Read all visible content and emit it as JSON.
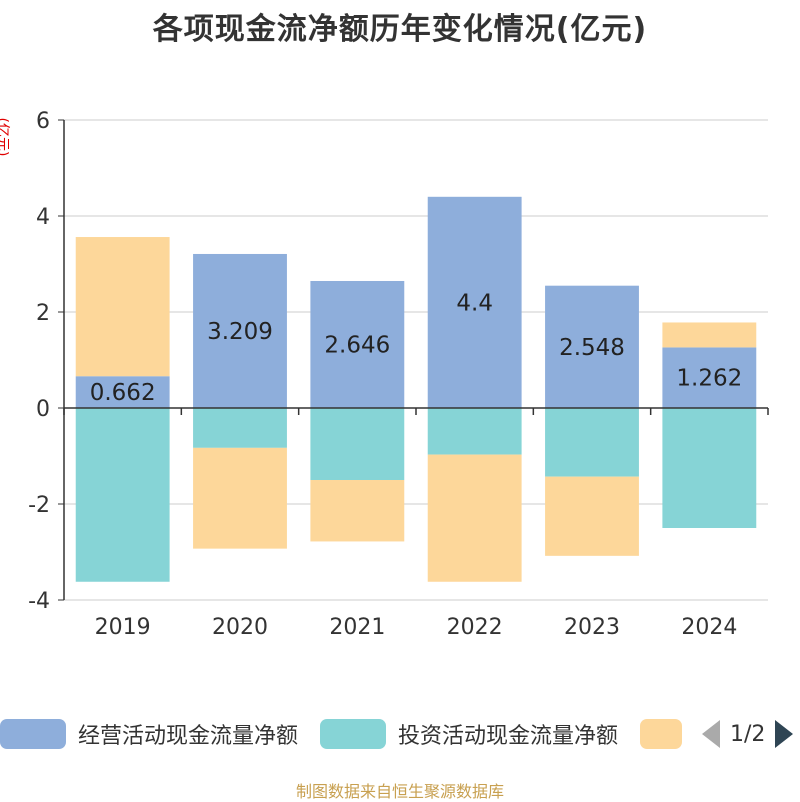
{
  "title": "各项现金流净额历年变化情况(亿元)",
  "y_unit": "(亿元)",
  "source": "制图数据来自恒生聚源数据库",
  "legend": {
    "items": [
      {
        "label": "经营活动现金流量净额",
        "color": "#8eaedb"
      },
      {
        "label": "投资活动现金流量净额",
        "color": "#86d4d6"
      },
      {
        "label": "",
        "color": "#fdd79a"
      }
    ],
    "page": "1/2"
  },
  "chart_data": {
    "type": "bar",
    "stacked": true,
    "categories": [
      "2019",
      "2020",
      "2021",
      "2022",
      "2023",
      "2024"
    ],
    "ylim": [
      -4,
      6
    ],
    "yticks": [
      -4,
      -2,
      0,
      2,
      4,
      6
    ],
    "grid": true,
    "legend_position": "bottom",
    "series": [
      {
        "name": "经营活动现金流量净额",
        "color": "#8eaedb",
        "values": [
          0.662,
          3.209,
          2.646,
          4.4,
          2.548,
          1.262
        ],
        "labels": [
          "0.662",
          "3.209",
          "2.646",
          "4.4",
          "2.548",
          "1.262"
        ]
      },
      {
        "name": "投资活动现金流量净额",
        "color": "#86d4d6",
        "values": [
          -3.62,
          -0.83,
          -1.5,
          -0.97,
          -1.43,
          -2.5
        ]
      },
      {
        "color": "#fdd79a",
        "values": [
          2.9,
          -2.1,
          -1.28,
          -2.65,
          -1.65,
          0.52
        ]
      }
    ]
  }
}
